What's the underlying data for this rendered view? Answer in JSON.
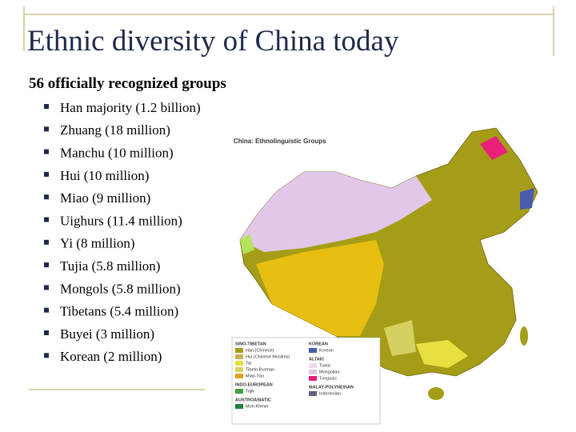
{
  "title": "Ethnic diversity of China today",
  "subtitle": "56 officially recognized groups",
  "bullets": [
    "Han majority (1.2 billion)",
    "Zhuang (18 million)",
    "Manchu (10 million)",
    "Hui (10 million)",
    "Miao (9 million)",
    "Uighurs (11.4 million)",
    "Yi (8 million)",
    "Tujia (5.8 million)",
    "Mongols (5.8 million)",
    "Tibetans (5.4 million)",
    "Buyei (3 million)",
    "Korean (2 million)"
  ],
  "map": {
    "title": "China: Ethnolinguistic Groups",
    "legend": [
      {
        "group": "SINO-TIBETAN",
        "items": [
          "Han (Chinese)",
          "Hui (Chinese Muslims)",
          "Tai",
          "Tibeto-Burman",
          "Miao-Yao"
        ]
      },
      {
        "group": "INDO-EUROPEAN",
        "items": [
          "Tajik"
        ]
      },
      {
        "group": "AUSTROASIATIC",
        "items": [
          "Mon-Khmer"
        ]
      },
      {
        "group": "KOREAN",
        "items": [
          "Korean"
        ]
      },
      {
        "group": "ALTAIC",
        "items": [
          "Turkic",
          "Mongolian",
          "Tungusic"
        ]
      },
      {
        "group": "MALAY-POLYNESIAN",
        "items": [
          "Indonesian"
        ]
      }
    ]
  }
}
